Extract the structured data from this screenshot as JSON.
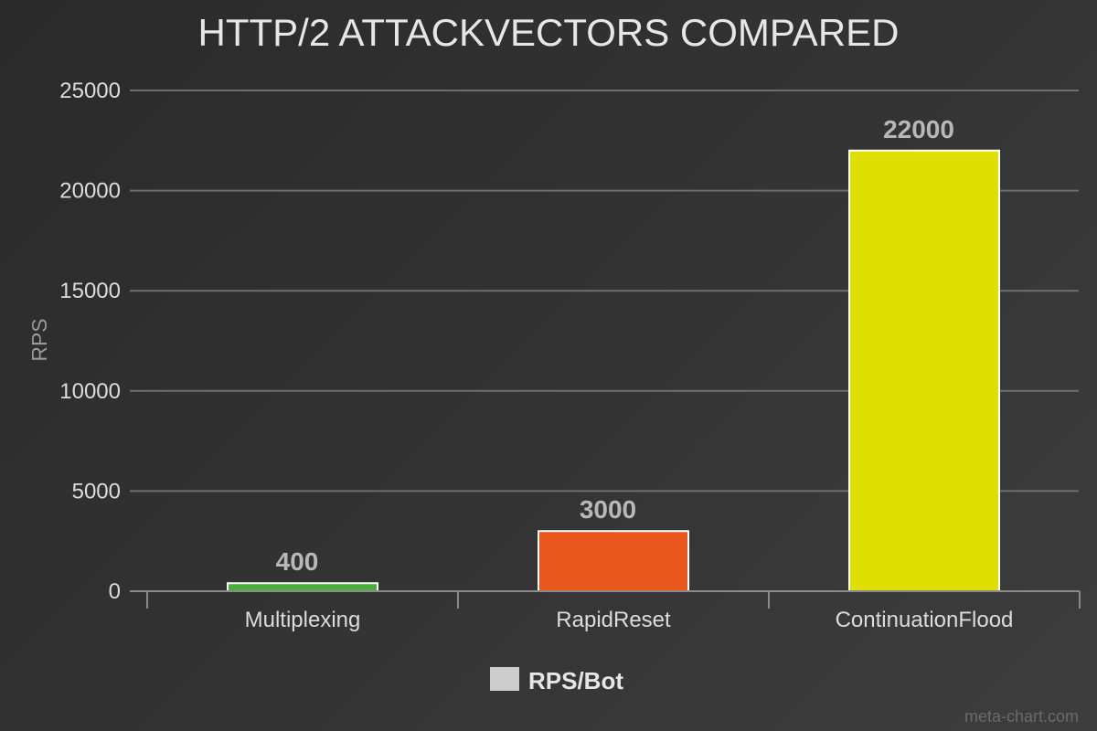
{
  "chart_data": {
    "type": "bar",
    "title": "HTTP/2 ATTACKVECTORS COMPARED",
    "ylabel": "RPS",
    "xlabel": "",
    "categories": [
      "Multiplexing",
      "RapidReset",
      "ContinuationFlood"
    ],
    "series": [
      {
        "name": "RPS/Bot",
        "values": [
          400,
          3000,
          22000
        ],
        "colors": [
          "#4cae3a",
          "#ea571c",
          "#dfe000"
        ]
      }
    ],
    "ylim": [
      0,
      25000
    ],
    "yticks": [
      0,
      5000,
      10000,
      15000,
      20000,
      25000
    ],
    "grid": true,
    "legend_position": "bottom-center",
    "legend_swatch_color": "#cccccc",
    "bar_border_color": "#ffffff"
  },
  "watermark": "meta-chart.com"
}
